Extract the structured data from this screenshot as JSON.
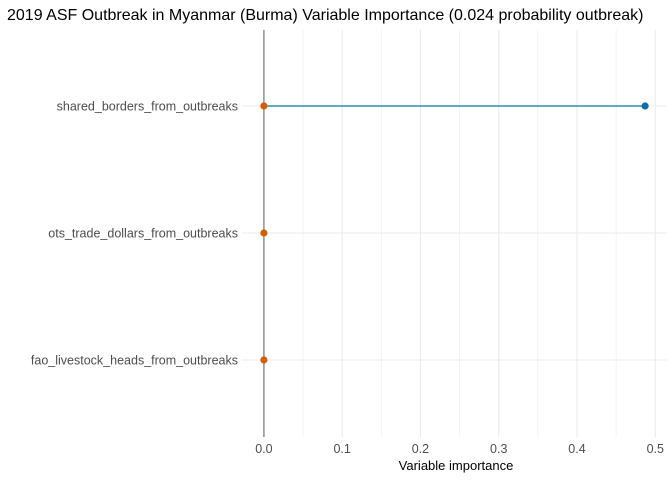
{
  "chart_data": {
    "type": "lollipop",
    "title": "2019 ASF Outbreak in Myanmar (Burma) Variable Importance (0.024 probability outbreak)",
    "xlabel": "Variable importance",
    "ylabel": "",
    "xlim": [
      -0.028,
      0.515
    ],
    "x_ticks": [
      "0.0",
      "0.1",
      "0.2",
      "0.3",
      "0.4",
      "0.5"
    ],
    "x_tick_values": [
      0.0,
      0.1,
      0.2,
      0.3,
      0.4,
      0.5
    ],
    "grid": true,
    "baseline": 0,
    "categories": [
      "shared_borders_from_outbreaks",
      "ots_trade_dollars_from_outbreaks",
      "fao_livestock_heads_from_outbreaks"
    ],
    "values": [
      0.487,
      0.0,
      0.0
    ],
    "colors": {
      "positive": "#0a6fae",
      "zero": "#d55e00",
      "baseline": "#7f7f7f",
      "grid": "#ebebeb"
    }
  }
}
